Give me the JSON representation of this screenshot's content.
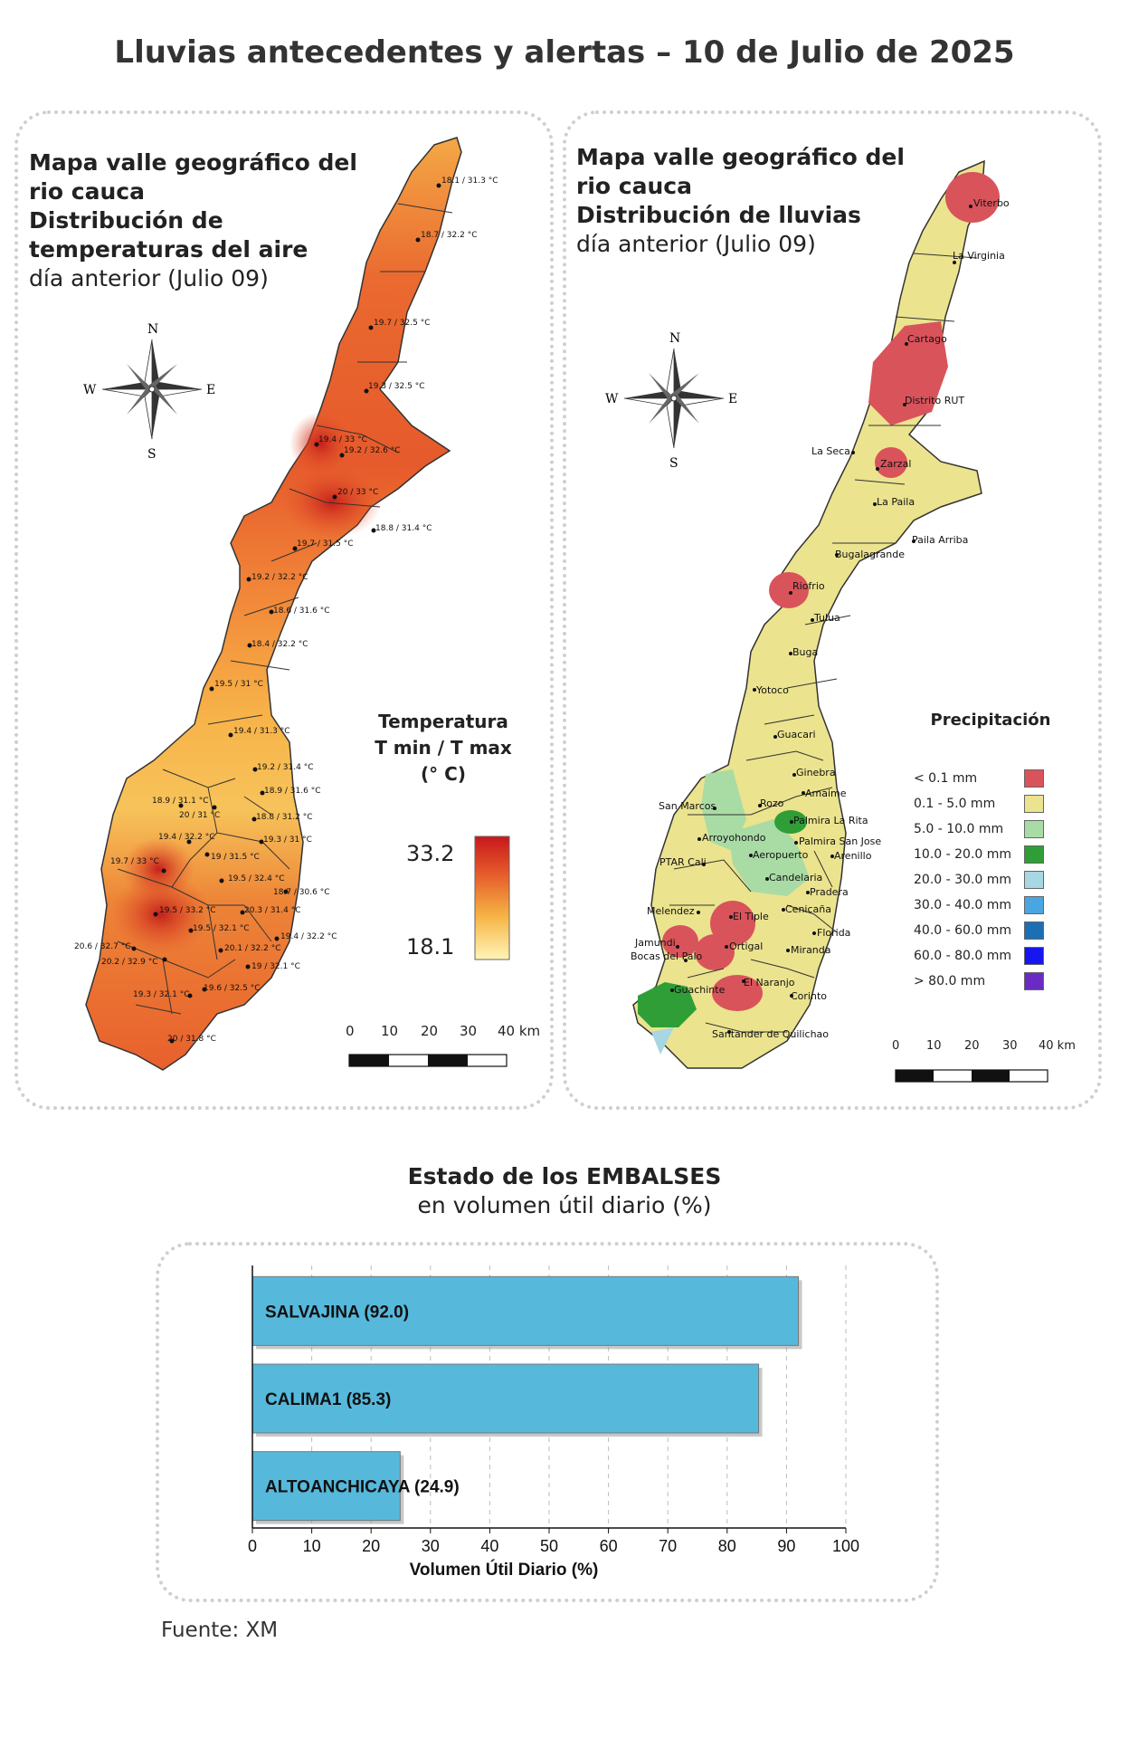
{
  "title": "Lluvias antecedentes y alertas – 10 de Julio de 2025",
  "temp_map": {
    "title_line1": "Mapa valle geográfico del",
    "title_line2": "rio cauca",
    "title_line3": "Distribución de",
    "title_line4": "temperaturas del aire",
    "title_line5": "día anterior (Julio 09)",
    "legend_title_1": "Temperatura",
    "legend_title_2": "T min / T max",
    "legend_title_3": "(° C)",
    "legend_max": "33.2",
    "legend_min": "18.1",
    "compass": {
      "n": "N",
      "s": "S",
      "e": "E",
      "w": "W"
    },
    "scale_ticks": [
      "0",
      "10",
      "20",
      "30",
      "40 km"
    ],
    "stations": [
      "18.1 / 31.3 °C",
      "18.7 / 32.2 °C",
      "19.7 / 32.5 °C",
      "19.3 / 32.5 °C",
      "19.4 / 33 °C",
      "19.2 / 32.6 °C",
      "20 / 33 °C",
      "18.8 / 31.4 °C",
      "19.7 / 31.5 °C",
      "19.2 / 32.2 °C",
      "18.6 / 31.6 °C",
      "18.4 / 32.2 °C",
      "19.5 / 31 °C",
      "19.4 / 31.3 °C",
      "19.2 / 31.4 °C",
      "18.9 / 31.1 °C",
      "18.9 / 31.6 °C",
      "20 / 31 °C",
      "18.8 / 31.2 °C",
      "19.4 / 32.2 °C",
      "19.3 / 31 °C",
      "19 / 31.5 °C",
      "19.7 / 33 °C",
      "19.5 / 32.4 °C",
      "18.7 / 30.6 °C",
      "19.5 / 33.2 °C",
      "20.3 / 31.4 °C",
      "19.5 / 32.1 °C",
      "19.4 / 32.2 °C",
      "20.6 / 32.7 °C",
      "20.1 / 32.2 °C",
      "20.2 / 32.9 °C",
      "19 / 32.1 °C",
      "19.3 / 32.1 °C",
      "19.6 / 32.5 °C",
      "20 / 31.8 °C"
    ]
  },
  "rain_map": {
    "title_line1": "Mapa valle geográfico del",
    "title_line2": "rio cauca",
    "title_line3": "Distribución de lluvias",
    "title_line4": "día anterior (Julio 09)",
    "compass": {
      "n": "N",
      "s": "S",
      "e": "E",
      "w": "W"
    },
    "legend_title": "Precipitación",
    "legend": [
      {
        "label": "< 0.1 mm",
        "color": "#d9535b"
      },
      {
        "label": "0.1 - 5.0 mm",
        "color": "#ebe38e"
      },
      {
        "label": "5.0 - 10.0 mm",
        "color": "#a9dca4"
      },
      {
        "label": "10.0 - 20.0 mm",
        "color": "#2f9e36"
      },
      {
        "label": "20.0 - 30.0 mm",
        "color": "#a6d7e3"
      },
      {
        "label": "30.0 - 40.0 mm",
        "color": "#4aa6e0"
      },
      {
        "label": "40.0 - 60.0 mm",
        "color": "#1d6fb5"
      },
      {
        "label": "60.0 - 80.0 mm",
        "color": "#1616f0"
      },
      {
        "label": "> 80.0 mm",
        "color": "#6a2bc4"
      }
    ],
    "scale_ticks": [
      "0",
      "10",
      "20",
      "30",
      "40 km"
    ],
    "places": [
      "Viterbo",
      "La Virginia",
      "Cartago",
      "Distrito RUT",
      "La Seca",
      "Zarzal",
      "La Paila",
      "Paila Arriba",
      "Bugalagrande",
      "Riofrio",
      "Tulua",
      "Buga",
      "Yotoco",
      "Guacari",
      "Ginebra",
      "Amaime",
      "San Marcos",
      "Rozo",
      "Arroyohondo",
      "Palmira La Rita",
      "Palmira San Jose",
      "Aeropuerto",
      "PTAR Cali",
      "Arenillo",
      "Candelaria",
      "Pradera",
      "Melendez",
      "El Tiple",
      "Cenicaña",
      "Jamundi",
      "Ortigal",
      "Florida",
      "Bocas del Palo",
      "Miranda",
      "Guachinte",
      "El Naranjo",
      "Corinto",
      "Santander de Quilichao"
    ]
  },
  "reservoirs": {
    "title": "Estado de los EMBALSES",
    "subtitle": "en volumen útil diario (%)",
    "source": "Fuente: XM"
  },
  "chart_data": {
    "type": "bar",
    "orientation": "horizontal",
    "categories": [
      "SALVAJINA",
      "CALIMA1",
      "ALTOANCHICAYA"
    ],
    "bar_labels": [
      "SALVAJINA (92.0)",
      "CALIMA1 (85.3)",
      "ALTOANCHICAYA (24.9)"
    ],
    "values": [
      92.0,
      85.3,
      24.9
    ],
    "xlabel": "Volumen Útil Diario (%)",
    "xlim": [
      0,
      100
    ],
    "xticks": [
      0,
      10,
      20,
      30,
      40,
      50,
      60,
      70,
      80,
      90,
      100
    ],
    "grid": true,
    "bar_color": "#56b9dc"
  }
}
